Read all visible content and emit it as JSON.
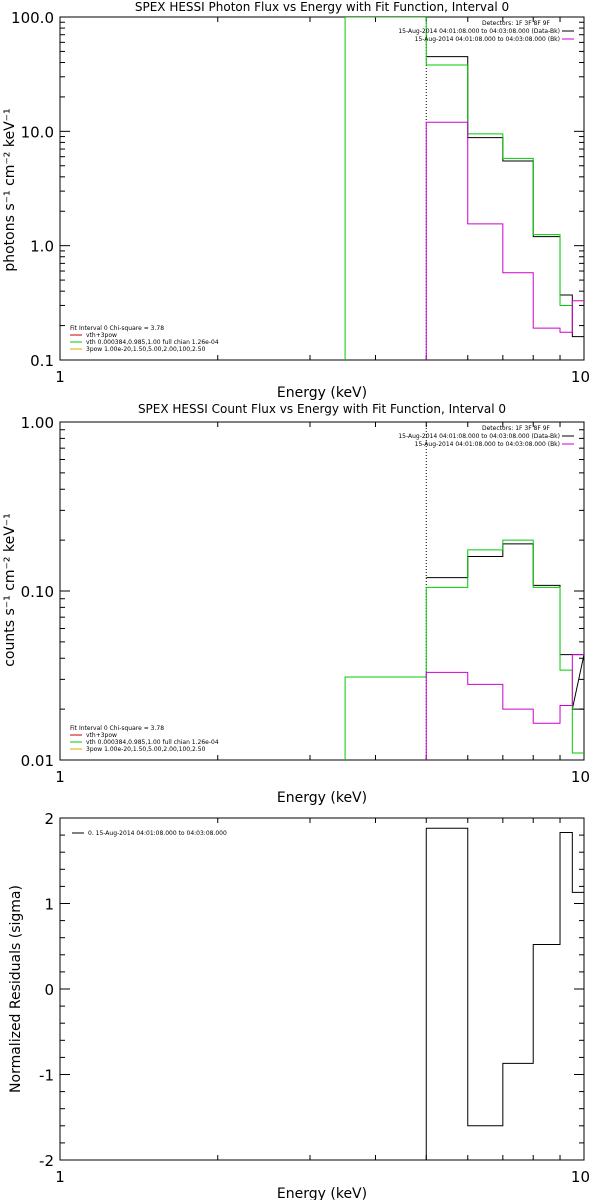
{
  "chart_data": [
    {
      "type": "line",
      "title": "SPEX HESSI Photon Flux vs Energy with Fit Function, Interval 0",
      "xlabel": "Energy (keV)",
      "ylabel": "photons s⁻¹ cm⁻² keV⁻¹",
      "xscale": "log",
      "yscale": "log",
      "xlim": [
        1,
        10
      ],
      "ylim": [
        0.1,
        100
      ],
      "x_ticks": [
        "1",
        "10"
      ],
      "y_ticks": [
        "0.1",
        "1.0",
        "10.0",
        "100.0"
      ],
      "legend_top": {
        "header": "Detectors: 1F 3F 8F 9F",
        "entries": [
          {
            "label": "15-Aug-2014 04:01:08.000 to 04:03:08.000 (Data-Bk)",
            "color": "#000000"
          },
          {
            "label": "15-Aug-2014 04:01:08.000 to 04:03:08.000 (Bk)",
            "color": "#cc00cc"
          }
        ]
      },
      "legend_bottom": {
        "header": "Fit Interval 0   Chi-square = 3.78",
        "entries": [
          {
            "label": "vth+3pow",
            "color": "#cc0000"
          },
          {
            "label": "vth 0.000384,0.985,1.00  full chian 1.26e-04",
            "color": "#00cc00"
          },
          {
            "label": "3pow 1.00e-20,1.50,5.00,2.00,100,2.50",
            "color": "#ddaa00"
          }
        ]
      },
      "series": [
        {
          "name": "15-Aug-2014 04:01:08.000 to 04:03:08.000 (Data-Bk)",
          "color": "#000000",
          "edges": [
            5,
            6,
            7,
            8,
            9,
            9.5,
            10
          ],
          "values": [
            45,
            8.8,
            5.5,
            1.2,
            0.37,
            0.16
          ]
        },
        {
          "name": "vth 0.000384,0.985,1.00  full chian 1.26e-04",
          "color": "#00cc00",
          "edges": [
            3.5,
            5,
            6,
            7,
            8,
            9,
            9.5
          ],
          "values": [
            100,
            38,
            9.5,
            5.8,
            1.25,
            0.3
          ],
          "vertical_start_from": 0.1
        },
        {
          "name": "15-Aug-2014 04:01:08.000 to 04:03:08.000 (Bk)",
          "color": "#cc00cc",
          "edges": [
            5,
            6,
            7,
            8,
            9,
            9.5,
            10
          ],
          "values": [
            12,
            1.55,
            0.58,
            0.19,
            0.175,
            0.33
          ],
          "vertical_start_from": 0.1
        }
      ],
      "vline": {
        "x": 5,
        "color": "#000000",
        "style": "dotted"
      }
    },
    {
      "type": "line",
      "title": "SPEX HESSI Count Flux vs Energy with Fit Function, Interval 0",
      "xlabel": "Energy (keV)",
      "ylabel": "counts s⁻¹ cm⁻² keV⁻¹",
      "xscale": "log",
      "yscale": "log",
      "xlim": [
        1,
        10
      ],
      "ylim": [
        0.01,
        1
      ],
      "x_ticks": [
        "1",
        "10"
      ],
      "y_ticks": [
        "0.01",
        "0.10",
        "1.00"
      ],
      "legend_top": {
        "header": "Detectors: 1F 3F 8F 9F",
        "entries": [
          {
            "label": "15-Aug-2014 04:01:08.000 to 04:03:08.000 (Data-Bk)",
            "color": "#000000"
          },
          {
            "label": "15-Aug-2014 04:01:08.000 to 04:03:08.000 (Bk)",
            "color": "#cc00cc"
          }
        ]
      },
      "legend_bottom": {
        "header": "Fit Interval 0   Chi-square = 3.78",
        "entries": [
          {
            "label": "vth+3pow",
            "color": "#cc0000"
          },
          {
            "label": "vth 0.000384,0.985,1.00  full chian 1.26e-04",
            "color": "#00cc00"
          },
          {
            "label": "3pow 1.00e-20,1.50,5.00,2.00,100,2.50",
            "color": "#ddaa00"
          }
        ]
      },
      "series": [
        {
          "name": "15-Aug-2014 04:01:08.000 to 04:03:08.000 (Data-Bk)",
          "color": "#000000",
          "edges": [
            5,
            6,
            7,
            8,
            9,
            10
          ],
          "values": [
            0.12,
            0.16,
            0.19,
            0.108,
            0.042
          ],
          "tail": [
            [
              9.5,
              0.02
            ],
            [
              10,
              0.02
            ]
          ]
        },
        {
          "name": "vth 0.000384,0.985,1.00  full chian 1.26e-04",
          "color": "#00cc00",
          "edges": [
            3.5,
            5,
            6,
            7,
            8,
            9,
            9.5,
            10
          ],
          "values": [
            0.031,
            0.105,
            0.175,
            0.2,
            0.105,
            0.034,
            0.011
          ],
          "vertical_start_from": 0.01
        },
        {
          "name": "15-Aug-2014 04:01:08.000 to 04:03:08.000 (Bk)",
          "color": "#cc00cc",
          "edges": [
            5,
            6,
            7,
            8,
            9,
            9.5,
            10
          ],
          "values": [
            0.033,
            0.028,
            0.02,
            0.0165,
            0.021,
            0.042
          ],
          "vertical_start_from": 0.01
        }
      ],
      "vline": {
        "x": 5,
        "color": "#000000",
        "style": "dotted"
      }
    },
    {
      "type": "line",
      "title": "",
      "xlabel": "Energy (keV)",
      "ylabel": "Normalized Residuals (sigma)",
      "xscale": "log",
      "yscale": "linear",
      "xlim": [
        1,
        10
      ],
      "ylim": [
        -2,
        2
      ],
      "x_ticks": [
        "1",
        "10"
      ],
      "y_ticks": [
        "-2",
        "-1",
        "0",
        "1",
        "2"
      ],
      "legend_top": {
        "header": "",
        "entries": [
          {
            "label": "0. 15-Aug-2014 04:01:08.000 to 04:03:08.000",
            "color": "#000000"
          }
        ]
      },
      "series": [
        {
          "name": "0. 15-Aug-2014 04:01:08.000 to 04:03:08.000",
          "color": "#000000",
          "edges": [
            5,
            6,
            7,
            8,
            9,
            9.5,
            10
          ],
          "values": [
            1.88,
            -1.6,
            -0.87,
            0.52,
            1.83,
            1.13
          ],
          "vertical_start_from": -2
        }
      ]
    }
  ]
}
